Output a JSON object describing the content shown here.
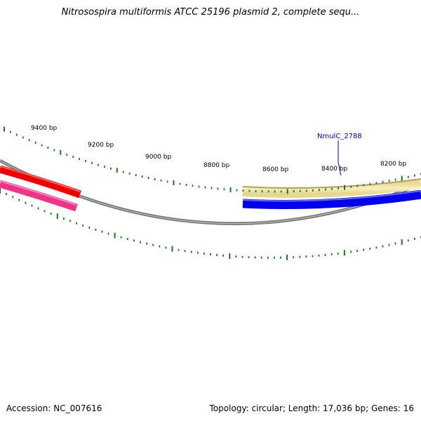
{
  "title": "Nitrosospira multiformis ATCC 25196 plasmid 2, complete sequ...",
  "footer": {
    "accession": "Accession: NC_007616",
    "summary": "Topology: circular; Length: 17,036 bp; Genes: 16"
  },
  "ticks": [
    {
      "label": "9400 bp"
    },
    {
      "label": "9200 bp"
    },
    {
      "label": "9000 bp"
    },
    {
      "label": "8800 bp"
    },
    {
      "label": "8600 bp"
    },
    {
      "label": "8400 bp"
    },
    {
      "label": "8200 bp"
    }
  ],
  "gene_label": "NmulC_2788",
  "colors": {
    "backbone": "#808080",
    "tick": "#1a7a1a",
    "gene_red": "#ee0000",
    "gene_pink": "#ee3388",
    "gene_yellow": "#f2e6a0",
    "gene_yellow_edge": "#b0a060",
    "gene_blue": "#0000ee",
    "label_blue": "#0000cc"
  }
}
